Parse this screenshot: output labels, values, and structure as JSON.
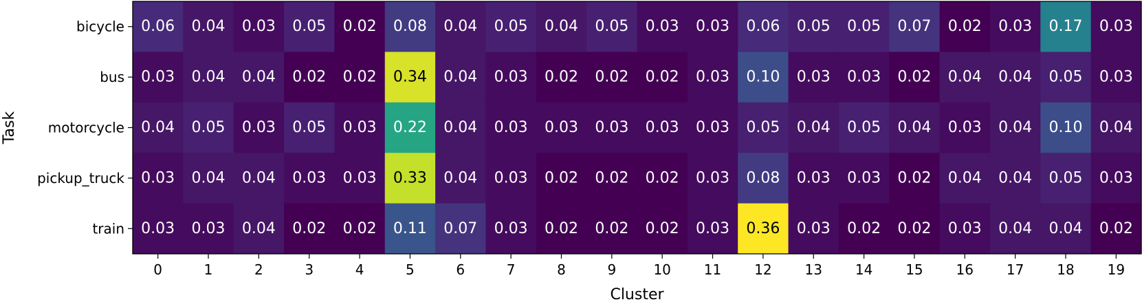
{
  "chart_data": {
    "type": "heatmap",
    "xlabel": "Cluster",
    "ylabel": "Task",
    "x_categories": [
      "0",
      "1",
      "2",
      "3",
      "4",
      "5",
      "6",
      "7",
      "8",
      "9",
      "10",
      "11",
      "12",
      "13",
      "14",
      "15",
      "16",
      "17",
      "18",
      "19"
    ],
    "y_categories": [
      "bicycle",
      "bus",
      "motorcycle",
      "pickup_truck",
      "train"
    ],
    "values": [
      [
        0.06,
        0.04,
        0.03,
        0.05,
        0.02,
        0.08,
        0.04,
        0.05,
        0.04,
        0.05,
        0.03,
        0.03,
        0.06,
        0.05,
        0.05,
        0.07,
        0.02,
        0.03,
        0.17,
        0.03
      ],
      [
        0.03,
        0.04,
        0.04,
        0.02,
        0.02,
        0.34,
        0.04,
        0.03,
        0.02,
        0.02,
        0.02,
        0.03,
        0.1,
        0.03,
        0.03,
        0.02,
        0.04,
        0.04,
        0.05,
        0.03
      ],
      [
        0.04,
        0.05,
        0.03,
        0.05,
        0.03,
        0.22,
        0.04,
        0.03,
        0.03,
        0.03,
        0.03,
        0.03,
        0.05,
        0.04,
        0.05,
        0.04,
        0.03,
        0.04,
        0.1,
        0.04
      ],
      [
        0.03,
        0.04,
        0.04,
        0.03,
        0.03,
        0.33,
        0.04,
        0.03,
        0.02,
        0.02,
        0.02,
        0.03,
        0.08,
        0.03,
        0.03,
        0.02,
        0.04,
        0.04,
        0.05,
        0.03
      ],
      [
        0.03,
        0.03,
        0.04,
        0.02,
        0.02,
        0.11,
        0.07,
        0.03,
        0.02,
        0.02,
        0.02,
        0.03,
        0.36,
        0.03,
        0.02,
        0.02,
        0.03,
        0.04,
        0.04,
        0.02
      ]
    ],
    "value_format": "0.00",
    "colormap": "viridis",
    "value_range": [
      0.02,
      0.36
    ],
    "grid": false,
    "colors": {
      "viridis_stops": [
        "#440154",
        "#482878",
        "#3e4989",
        "#31688e",
        "#26828e",
        "#1f9e89",
        "#35b779",
        "#6ece58",
        "#b5de2b",
        "#fde725"
      ],
      "text_dark": "#000000",
      "text_light": "#ffffff"
    }
  }
}
